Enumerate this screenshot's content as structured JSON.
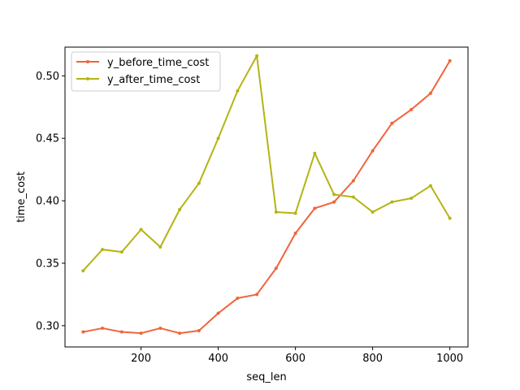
{
  "chart_data": {
    "type": "line",
    "xlabel": "seq_len",
    "ylabel": "time_cost",
    "xlim": [
      3,
      1047
    ],
    "ylim": [
      0.283,
      0.523
    ],
    "x_ticks": [
      200,
      400,
      600,
      800,
      1000
    ],
    "x_tick_labels": [
      "200",
      "400",
      "600",
      "800",
      "1000"
    ],
    "y_ticks": [
      0.3,
      0.35,
      0.4,
      0.45,
      0.5
    ],
    "y_tick_labels": [
      "0.30",
      "0.35",
      "0.40",
      "0.45",
      "0.50"
    ],
    "grid": false,
    "legend_position": "top-left",
    "x": [
      50,
      100,
      150,
      200,
      250,
      300,
      350,
      400,
      450,
      500,
      550,
      600,
      650,
      700,
      750,
      800,
      850,
      900,
      950,
      1000
    ],
    "series": [
      {
        "name": "y_before_time_cost",
        "color": "#f0643c",
        "values": [
          0.295,
          0.298,
          0.295,
          0.294,
          0.298,
          0.294,
          0.296,
          0.31,
          0.322,
          0.325,
          0.346,
          0.374,
          0.394,
          0.399,
          0.416,
          0.44,
          0.462,
          0.473,
          0.486,
          0.512
        ]
      },
      {
        "name": "y_after_time_cost",
        "color": "#b4b414",
        "values": [
          0.344,
          0.361,
          0.359,
          0.377,
          0.363,
          0.393,
          0.414,
          0.45,
          0.488,
          0.516,
          0.391,
          0.39,
          0.438,
          0.405,
          0.403,
          0.391,
          0.399,
          0.402,
          0.412,
          0.386
        ]
      }
    ]
  }
}
